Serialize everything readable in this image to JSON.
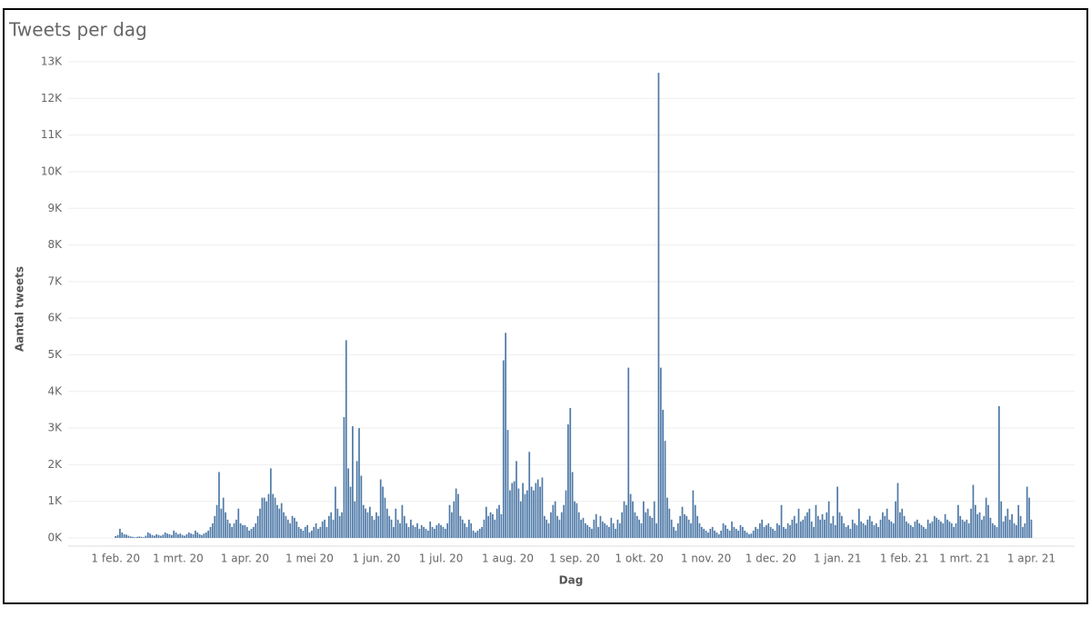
{
  "chart_data": {
    "type": "bar",
    "title": "Tweets per dag",
    "x_label": "Dag",
    "y_label": "Aantal tweets",
    "color": "#4e79a7",
    "grid": true,
    "ylim": [
      0,
      13200
    ],
    "yticks": [
      {
        "value": 0,
        "label": "0K"
      },
      {
        "value": 1000,
        "label": "1K"
      },
      {
        "value": 2000,
        "label": "2K"
      },
      {
        "value": 3000,
        "label": "3K"
      },
      {
        "value": 4000,
        "label": "4K"
      },
      {
        "value": 5000,
        "label": "5K"
      },
      {
        "value": 6000,
        "label": "6K"
      },
      {
        "value": 7000,
        "label": "7K"
      },
      {
        "value": 8000,
        "label": "8K"
      },
      {
        "value": 9000,
        "label": "9K"
      },
      {
        "value": 10000,
        "label": "10K"
      },
      {
        "value": 11000,
        "label": "11K"
      },
      {
        "value": 12000,
        "label": "12K"
      },
      {
        "value": 13000,
        "label": "13K"
      }
    ],
    "categories": [
      "1 feb. 20",
      null,
      null,
      null,
      null,
      null,
      null,
      null,
      null,
      null,
      null,
      null,
      null,
      null,
      null,
      null,
      null,
      null,
      null,
      null,
      null,
      null,
      null,
      null,
      null,
      null,
      null,
      null,
      null,
      "1 mrt. 20",
      null,
      null,
      null,
      null,
      null,
      null,
      null,
      null,
      null,
      null,
      null,
      null,
      null,
      null,
      null,
      null,
      null,
      null,
      null,
      null,
      null,
      null,
      null,
      null,
      null,
      null,
      null,
      null,
      null,
      null,
      "1 apr. 20",
      null,
      null,
      null,
      null,
      null,
      null,
      null,
      null,
      null,
      null,
      null,
      null,
      null,
      null,
      null,
      null,
      null,
      null,
      null,
      null,
      null,
      null,
      null,
      null,
      null,
      null,
      null,
      null,
      null,
      "1 mei 20",
      null,
      null,
      null,
      null,
      null,
      null,
      null,
      null,
      null,
      null,
      null,
      null,
      null,
      null,
      null,
      null,
      null,
      null,
      null,
      null,
      null,
      null,
      null,
      null,
      null,
      null,
      null,
      null,
      null,
      null,
      "1 jun. 20",
      null,
      null,
      null,
      null,
      null,
      null,
      null,
      null,
      null,
      null,
      null,
      null,
      null,
      null,
      null,
      null,
      null,
      null,
      null,
      null,
      null,
      null,
      null,
      null,
      null,
      null,
      null,
      null,
      null,
      "1 jul. 20",
      null,
      null,
      null,
      null,
      null,
      null,
      null,
      null,
      null,
      null,
      null,
      null,
      null,
      null,
      null,
      null,
      null,
      null,
      null,
      null,
      null,
      null,
      null,
      null,
      null,
      null,
      null,
      null,
      null,
      null,
      "1 aug. 20",
      null,
      null,
      null,
      null,
      null,
      null,
      null,
      null,
      null,
      null,
      null,
      null,
      null,
      null,
      null,
      null,
      null,
      null,
      null,
      null,
      null,
      null,
      null,
      null,
      null,
      null,
      null,
      null,
      null,
      null,
      "1 sep. 20",
      null,
      null,
      null,
      null,
      null,
      null,
      null,
      null,
      null,
      null,
      null,
      null,
      null,
      null,
      null,
      null,
      null,
      null,
      null,
      null,
      null,
      null,
      null,
      null,
      null,
      null,
      null,
      null,
      null,
      "1 okt. 20",
      null,
      null,
      null,
      null,
      null,
      null,
      null,
      null,
      null,
      null,
      null,
      null,
      null,
      null,
      null,
      null,
      null,
      null,
      null,
      null,
      null,
      null,
      null,
      null,
      null,
      null,
      null,
      null,
      null,
      null,
      "1 nov. 20",
      null,
      null,
      null,
      null,
      null,
      null,
      null,
      null,
      null,
      null,
      null,
      null,
      null,
      null,
      null,
      null,
      null,
      null,
      null,
      null,
      null,
      null,
      null,
      null,
      null,
      null,
      null,
      null,
      null,
      "1 dec. 20",
      null,
      null,
      null,
      null,
      null,
      null,
      null,
      null,
      null,
      null,
      null,
      null,
      null,
      null,
      null,
      null,
      null,
      null,
      null,
      null,
      null,
      null,
      null,
      null,
      null,
      null,
      null,
      null,
      null,
      null,
      "1 jan. 21",
      null,
      null,
      null,
      null,
      null,
      null,
      null,
      null,
      null,
      null,
      null,
      null,
      null,
      null,
      null,
      null,
      null,
      null,
      null,
      null,
      null,
      null,
      null,
      null,
      null,
      null,
      null,
      null,
      null,
      null,
      "1 feb. 21",
      null,
      null,
      null,
      null,
      null,
      null,
      null,
      null,
      null,
      null,
      null,
      null,
      null,
      null,
      null,
      null,
      null,
      null,
      null,
      null,
      null,
      null,
      null,
      null,
      null,
      null,
      null,
      "1 mrt. 21",
      null,
      null,
      null,
      null,
      null,
      null,
      null,
      null,
      null,
      null,
      null,
      null,
      null,
      null,
      null,
      null,
      null,
      null,
      null,
      null,
      null,
      null,
      null,
      null,
      null,
      null,
      null,
      null,
      null,
      null,
      "1 apr. 21"
    ],
    "values": [
      50,
      80,
      250,
      150,
      100,
      90,
      60,
      40,
      30,
      20,
      30,
      40,
      30,
      20,
      60,
      150,
      120,
      80,
      60,
      100,
      80,
      60,
      90,
      150,
      120,
      100,
      80,
      200,
      150,
      100,
      120,
      80,
      60,
      100,
      150,
      120,
      100,
      200,
      150,
      100,
      80,
      120,
      150,
      200,
      300,
      400,
      600,
      900,
      1800,
      800,
      1100,
      700,
      500,
      400,
      300,
      400,
      500,
      800,
      400,
      350,
      350,
      300,
      200,
      250,
      300,
      400,
      600,
      800,
      1100,
      1100,
      1000,
      1200,
      1900,
      1200,
      1100,
      900,
      800,
      950,
      700,
      600,
      500,
      400,
      600,
      550,
      450,
      300,
      250,
      200,
      300,
      350,
      150,
      200,
      300,
      400,
      250,
      300,
      450,
      500,
      300,
      600,
      700,
      500,
      1400,
      800,
      600,
      700,
      3300,
      5400,
      1900,
      1400,
      3050,
      1000,
      2100,
      3000,
      1700,
      900,
      800,
      700,
      850,
      600,
      500,
      700,
      600,
      1600,
      1400,
      1100,
      800,
      600,
      500,
      300,
      800,
      500,
      400,
      900,
      600,
      400,
      300,
      500,
      350,
      300,
      400,
      250,
      350,
      300,
      250,
      200,
      450,
      300,
      250,
      350,
      400,
      350,
      300,
      250,
      400,
      900,
      700,
      1000,
      1350,
      1200,
      600,
      500,
      400,
      300,
      500,
      400,
      200,
      150,
      200,
      250,
      300,
      500,
      850,
      600,
      700,
      650,
      500,
      800,
      900,
      650,
      4850,
      5600,
      2950,
      1300,
      1500,
      1550,
      2100,
      1350,
      1000,
      1500,
      1200,
      1300,
      2350,
      1400,
      1300,
      1500,
      1600,
      1400,
      1650,
      600,
      500,
      400,
      700,
      900,
      1000,
      600,
      500,
      700,
      900,
      1300,
      3100,
      3550,
      1800,
      1000,
      950,
      700,
      500,
      550,
      400,
      350,
      300,
      250,
      500,
      650,
      300,
      600,
      450,
      400,
      350,
      300,
      550,
      400,
      250,
      500,
      400,
      700,
      1000,
      900,
      4650,
      1200,
      1000,
      700,
      600,
      500,
      400,
      1000,
      700,
      800,
      600,
      550,
      1000,
      400,
      12700,
      4650,
      3500,
      2650,
      1100,
      800,
      500,
      300,
      200,
      400,
      600,
      850,
      650,
      600,
      500,
      400,
      1300,
      900,
      600,
      400,
      300,
      250,
      200,
      150,
      250,
      300,
      200,
      150,
      100,
      200,
      400,
      350,
      250,
      200,
      450,
      300,
      250,
      200,
      350,
      300,
      200,
      150,
      100,
      120,
      200,
      300,
      250,
      400,
      500,
      300,
      350,
      400,
      300,
      250,
      200,
      400,
      350,
      900,
      300,
      250,
      400,
      350,
      500,
      600,
      400,
      800,
      450,
      500,
      600,
      700,
      800,
      450,
      300,
      900,
      600,
      500,
      650,
      500,
      700,
      1000,
      400,
      600,
      350,
      1400,
      700,
      600,
      400,
      300,
      350,
      250,
      500,
      400,
      350,
      800,
      450,
      400,
      350,
      500,
      600,
      450,
      350,
      400,
      300,
      500,
      700,
      600,
      800,
      500,
      450,
      400,
      1000,
      1500,
      700,
      800,
      600,
      450,
      400,
      350,
      300,
      450,
      500,
      400,
      350,
      300,
      250,
      500,
      400,
      450,
      600,
      550,
      500,
      450,
      400,
      650,
      500,
      450,
      400,
      300,
      400,
      900,
      600,
      500,
      450,
      500,
      400,
      800,
      1450,
      900,
      650,
      700,
      500,
      600,
      1100,
      900,
      550,
      400,
      350,
      300,
      3600,
      1000,
      450,
      600,
      800,
      500,
      650,
      400,
      350,
      900,
      600,
      300,
      400,
      1400,
      1100,
      500
    ]
  }
}
